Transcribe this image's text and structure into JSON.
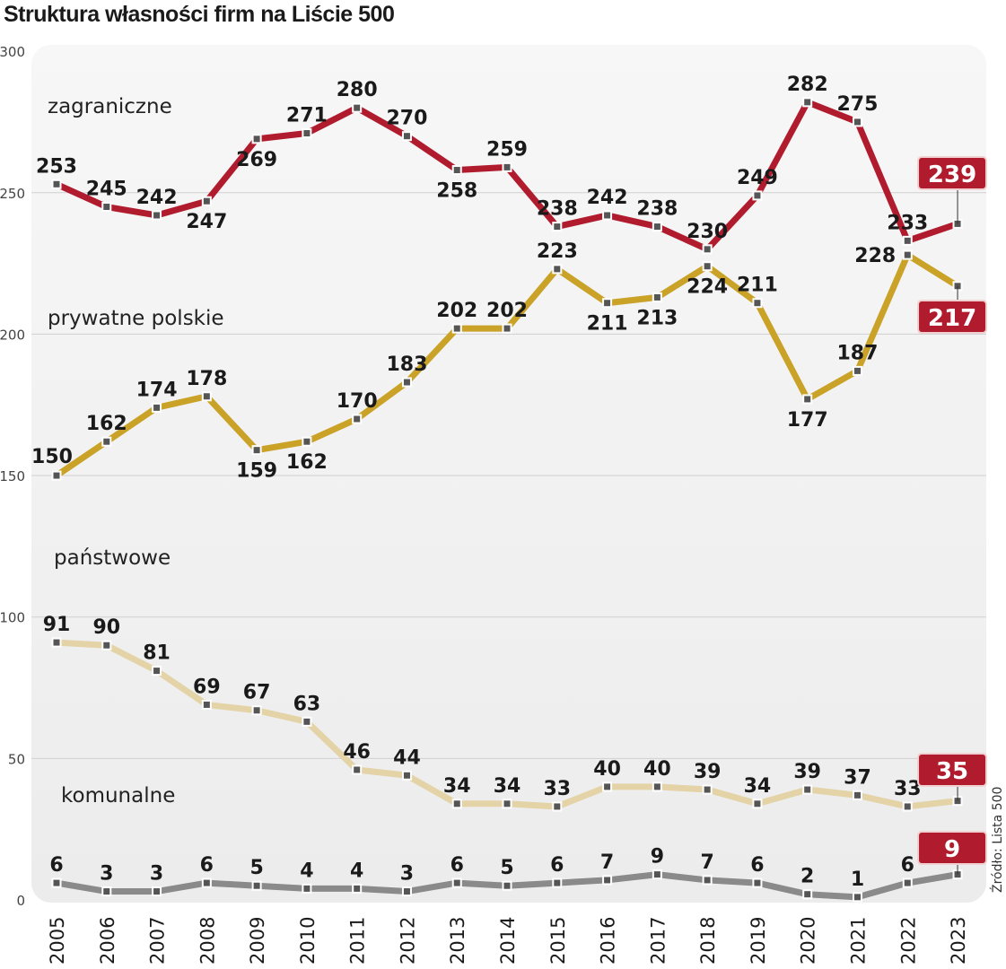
{
  "chart_data": {
    "type": "line",
    "title": "Struktura własności firm na Liście 500",
    "source": "Źródło: Lista 500",
    "xlabel": "",
    "ylabel": "",
    "ylim": [
      0,
      300
    ],
    "yticks": [
      0,
      50,
      100,
      150,
      200,
      250,
      300
    ],
    "grid": true,
    "x": [
      "2005",
      "2006",
      "2007",
      "2008",
      "2009",
      "2010",
      "2011",
      "2012",
      "2013",
      "2014",
      "2015",
      "2016",
      "2017",
      "2018",
      "2019",
      "2020",
      "2021",
      "2022",
      "2023"
    ],
    "series": [
      {
        "name": "zagraniczne",
        "color": "#b01c2e",
        "values": [
          253,
          245,
          242,
          247,
          269,
          271,
          280,
          270,
          258,
          259,
          238,
          242,
          238,
          230,
          249,
          282,
          275,
          233,
          239
        ]
      },
      {
        "name": "prywatne polskie",
        "color": "#c9a227",
        "values": [
          150,
          162,
          174,
          178,
          159,
          162,
          170,
          183,
          202,
          202,
          223,
          211,
          213,
          224,
          211,
          177,
          187,
          228,
          217
        ]
      },
      {
        "name": "państwowe",
        "color": "#e3d3a6",
        "values": [
          91,
          90,
          81,
          69,
          67,
          63,
          46,
          44,
          34,
          34,
          33,
          40,
          40,
          39,
          34,
          39,
          37,
          33,
          35
        ]
      },
      {
        "name": "komunalne",
        "color": "#8a8a8a",
        "values": [
          6,
          3,
          3,
          6,
          5,
          4,
          4,
          3,
          6,
          5,
          6,
          7,
          9,
          7,
          6,
          2,
          1,
          6,
          9
        ]
      }
    ],
    "highlight_color": "#b01c2e"
  }
}
